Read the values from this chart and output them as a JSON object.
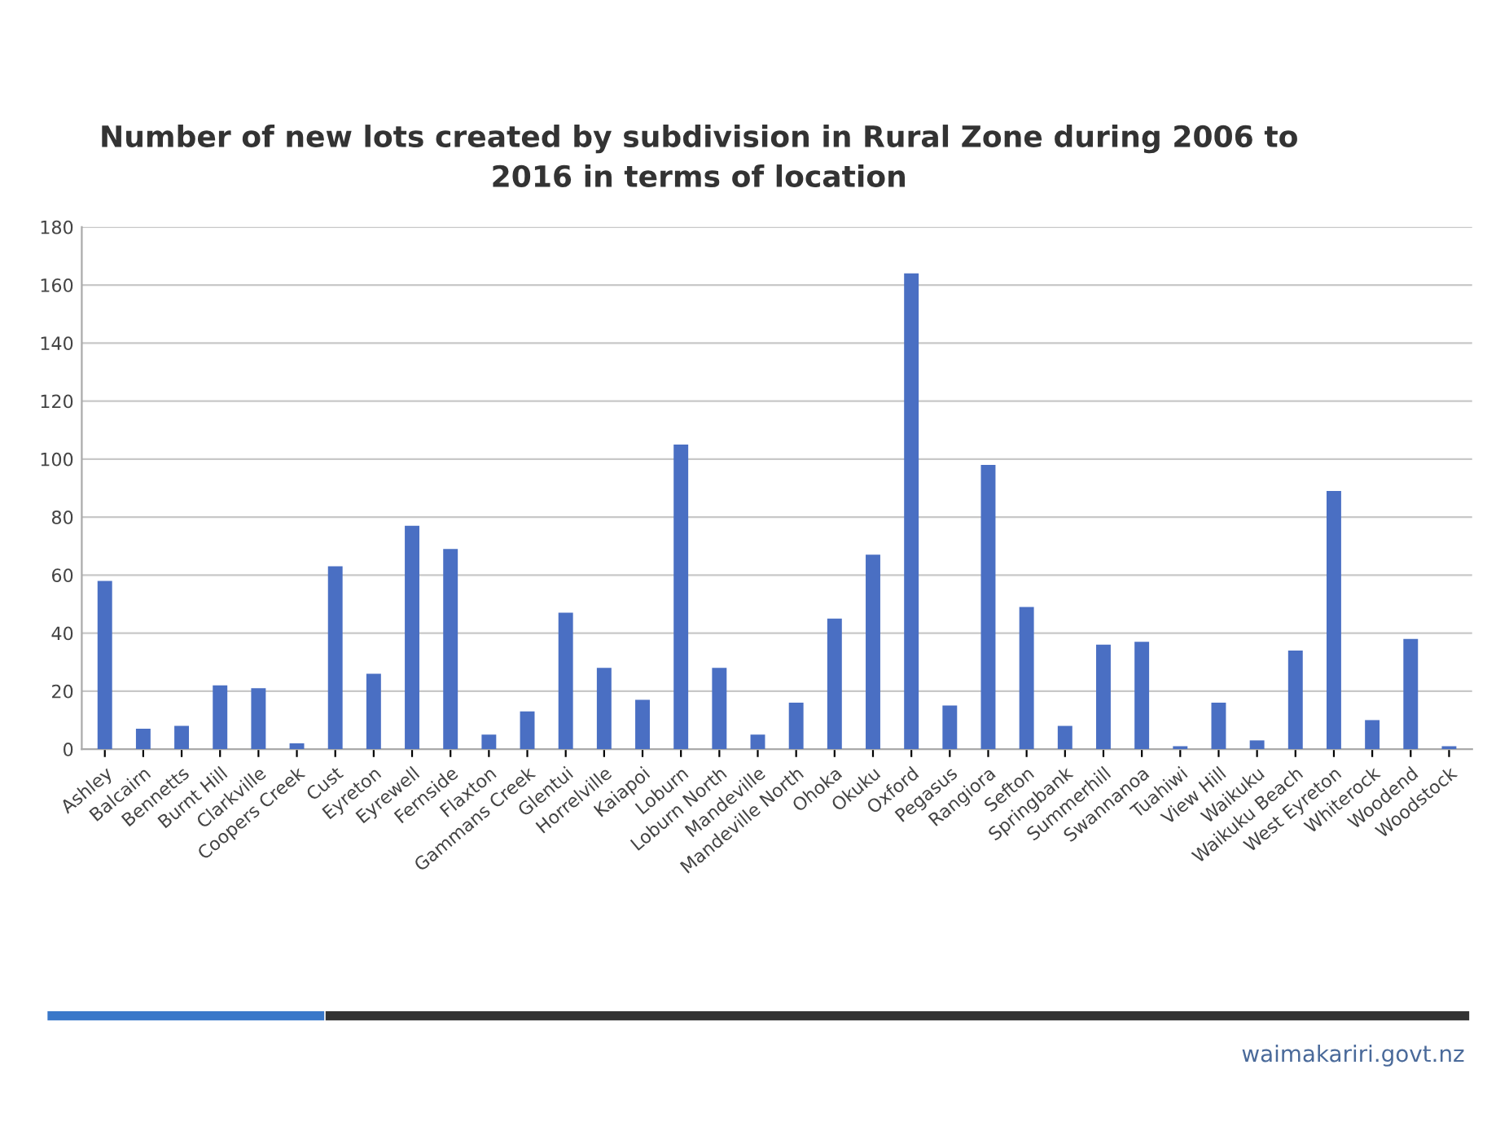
{
  "chart_data": {
    "type": "bar",
    "title": "Number of new lots created by subdivision in Rural Zone during 2006 to\n2016 in terms of location",
    "categories": [
      "Ashley",
      "Balcairn",
      "Bennetts",
      "Burnt Hill",
      "Clarkville",
      "Coopers Creek",
      "Cust",
      "Eyreton",
      "Eyrewell",
      "Fernside",
      "Flaxton",
      "Gammans Creek",
      "Glentui",
      "Horrelville",
      "Kaiapoi",
      "Loburn",
      "Loburn North",
      "Mandeville",
      "Mandeville North",
      "Ohoka",
      "Okuku",
      "Oxford",
      "Pegasus",
      "Rangiora",
      "Sefton",
      "Springbank",
      "Summerhill",
      "Swannanoa",
      "Tuahiwi",
      "View Hill",
      "Waikuku",
      "Waikuku Beach",
      "West Eyreton",
      "Whiterock",
      "Woodend",
      "Woodstock"
    ],
    "values": [
      58,
      7,
      8,
      22,
      21,
      2,
      63,
      26,
      77,
      69,
      5,
      13,
      47,
      28,
      17,
      105,
      28,
      5,
      16,
      45,
      67,
      164,
      15,
      98,
      49,
      8,
      36,
      37,
      1,
      16,
      3,
      34,
      89,
      10,
      38,
      1
    ],
    "color": "#4a6fc3",
    "ylim": [
      0,
      180
    ],
    "yticks": [
      0,
      20,
      40,
      60,
      80,
      100,
      120,
      140,
      160,
      180
    ],
    "grid": "y",
    "annotations": [
      "waimakariri.govt.nz"
    ]
  }
}
